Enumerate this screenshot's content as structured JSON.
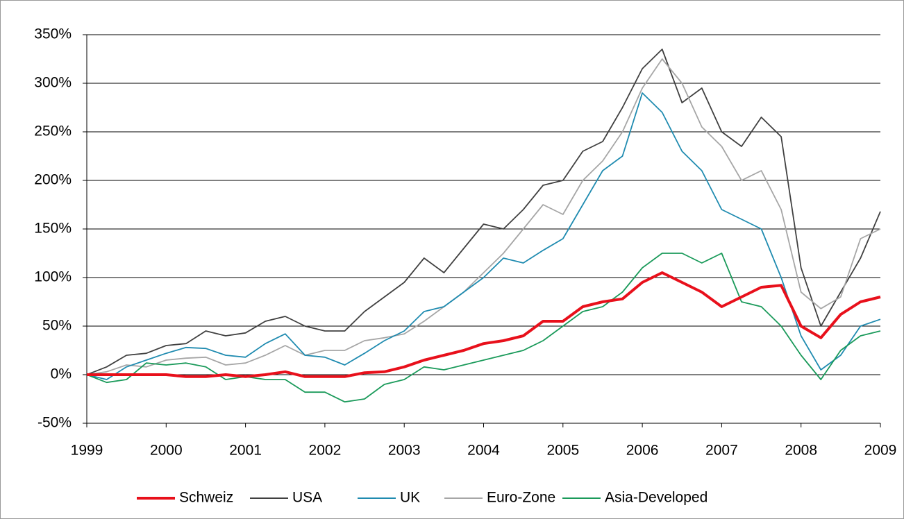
{
  "chart_data": {
    "type": "line",
    "x": [
      1999,
      1999.25,
      1999.5,
      1999.75,
      2000,
      2000.25,
      2000.5,
      2000.75,
      2001,
      2001.25,
      2001.5,
      2001.75,
      2002,
      2002.25,
      2002.5,
      2002.75,
      2003,
      2003.25,
      2003.5,
      2003.75,
      2004,
      2004.25,
      2004.5,
      2004.75,
      2005,
      2005.25,
      2005.5,
      2005.75,
      2006,
      2006.25,
      2006.5,
      2006.75,
      2007,
      2007.25,
      2007.5,
      2007.75,
      2008,
      2008.25,
      2008.5,
      2008.75,
      2009
    ],
    "xlim": [
      1999,
      2009
    ],
    "xticks": [
      1999,
      2000,
      2001,
      2002,
      2003,
      2004,
      2005,
      2006,
      2007,
      2008,
      2009
    ],
    "ylim": [
      -50,
      350
    ],
    "yticks": [
      {
        "value": -50,
        "label": "-50%"
      },
      {
        "value": 0,
        "label": "0%"
      },
      {
        "value": 50,
        "label": "50%"
      },
      {
        "value": 100,
        "label": "100%"
      },
      {
        "value": 150,
        "label": "150%"
      },
      {
        "value": 200,
        "label": "200%"
      },
      {
        "value": 250,
        "label": "250%"
      },
      {
        "value": 300,
        "label": "300%"
      },
      {
        "value": 350,
        "label": "350%"
      }
    ],
    "grid": true,
    "legend": "bottom",
    "series": [
      {
        "name": "Schweiz",
        "color": "#e8101b",
        "values": [
          0,
          0,
          0,
          0,
          0,
          -2,
          -2,
          0,
          -2,
          0,
          3,
          -2,
          -2,
          -2,
          2,
          3,
          8,
          15,
          20,
          25,
          32,
          35,
          40,
          55,
          55,
          70,
          75,
          78,
          95,
          105,
          95,
          85,
          70,
          80,
          90,
          92,
          50,
          38,
          62,
          75,
          80
        ]
      },
      {
        "name": "USA",
        "color": "#404040",
        "values": [
          0,
          8,
          20,
          22,
          30,
          32,
          45,
          40,
          43,
          55,
          60,
          50,
          45,
          45,
          65,
          80,
          95,
          120,
          105,
          130,
          155,
          150,
          170,
          195,
          200,
          230,
          240,
          275,
          315,
          335,
          280,
          295,
          250,
          235,
          265,
          245,
          110,
          50,
          85,
          120,
          168
        ]
      },
      {
        "name": "UK",
        "color": "#1f8bb0",
        "values": [
          0,
          -5,
          8,
          15,
          22,
          28,
          27,
          20,
          18,
          32,
          42,
          20,
          18,
          10,
          22,
          35,
          45,
          65,
          70,
          85,
          100,
          120,
          115,
          128,
          140,
          175,
          210,
          225,
          290,
          270,
          230,
          210,
          170,
          160,
          150,
          100,
          40,
          5,
          20,
          50,
          57
        ]
      },
      {
        "name": "Euro-Zone",
        "color": "#a6a6a6",
        "values": [
          0,
          3,
          10,
          8,
          15,
          17,
          18,
          10,
          12,
          20,
          30,
          20,
          25,
          25,
          35,
          38,
          42,
          55,
          70,
          85,
          105,
          125,
          150,
          175,
          165,
          200,
          220,
          250,
          295,
          325,
          300,
          255,
          235,
          200,
          210,
          170,
          85,
          68,
          80,
          140,
          150
        ]
      },
      {
        "name": "Asia-Developed",
        "color": "#1a9a5a",
        "values": [
          0,
          -8,
          -5,
          12,
          10,
          12,
          8,
          -5,
          -2,
          -5,
          -5,
          -18,
          -18,
          -28,
          -25,
          -10,
          -5,
          8,
          5,
          10,
          15,
          20,
          25,
          35,
          50,
          65,
          70,
          85,
          110,
          125,
          125,
          115,
          125,
          75,
          70,
          50,
          20,
          -5,
          25,
          40,
          45
        ]
      }
    ]
  }
}
